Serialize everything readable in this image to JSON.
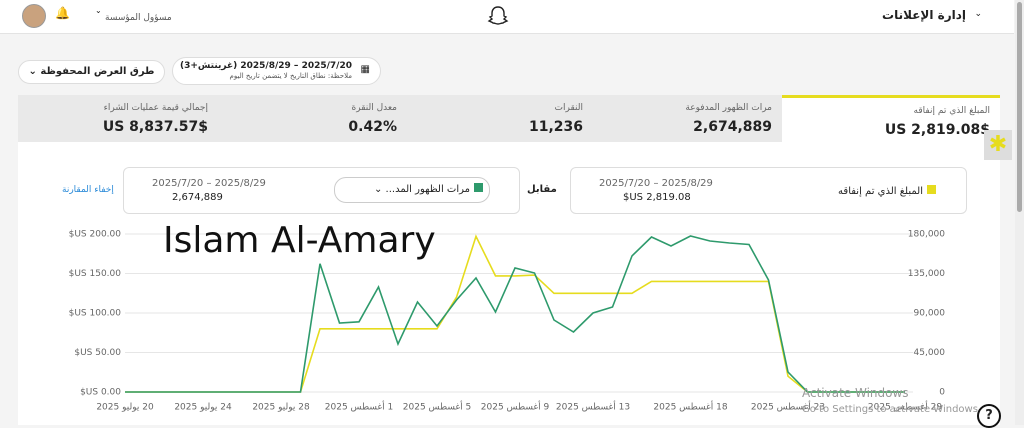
{
  "header": {
    "title": "إدارة الإعلانات",
    "account_role": "مسؤول المؤسسة"
  },
  "toolbar": {
    "saved_views": "طرق العرض المحفوظة",
    "date_range": "2025/7/20 – 2025/8/29 (غرينتش+3)",
    "date_note": "ملاحظة: نطاق التاريخ لا يتضمن تاريخ اليوم"
  },
  "metrics": [
    {
      "label": "المبلغ الذي تم إنفاقه",
      "value": "$US 2,819.08"
    },
    {
      "label": "مرات الظهور المدفوعة",
      "value": "2,674,889"
    },
    {
      "label": "النقرات",
      "value": "11,236"
    },
    {
      "label": "معدل النقرة",
      "value": "0.42%"
    },
    {
      "label": "إجمالي قيمة عمليات الشراء",
      "value": "$US 8,837.57"
    }
  ],
  "comparison": {
    "primary": {
      "date_range": "2025/7/20 – 2025/8/29",
      "value": "$US 2,819.08"
    },
    "versus": "مقابل",
    "secondary": {
      "date_range": "2025/7/20 – 2025/8/29",
      "value": "2,674,889"
    },
    "hide": "إخفاء المقارنة"
  },
  "watermark": "Islam Al-Amary",
  "os_notice": {
    "title": "Activate Windows",
    "text": "Go to Settings to activate Windows."
  },
  "chart_data": {
    "type": "line",
    "categories": [
      "20 يوليو 2025",
      null,
      null,
      null,
      "24 يوليو 2025",
      null,
      null,
      null,
      "28 يوليو 2025",
      null,
      null,
      null,
      "1 أغسطس 2025",
      null,
      null,
      null,
      "5 أغسطس 2025",
      null,
      null,
      null,
      "9 أغسطس 2025",
      null,
      null,
      null,
      "13 أغسطس 2025",
      null,
      null,
      null,
      null,
      "18 أغسطس 2025",
      null,
      null,
      null,
      null,
      "23 أغسطس 2025",
      null,
      null,
      null,
      null,
      null,
      "29 أغسطس 2025"
    ],
    "series": [
      {
        "name": "المبلغ الذي تم إنفاقه",
        "color": "#e6dc1e",
        "axis": "y",
        "values": [
          0,
          0,
          0,
          0,
          0,
          0,
          0,
          0,
          0,
          0,
          80,
          80,
          80,
          80,
          80,
          80,
          80,
          120,
          197,
          147,
          147,
          148,
          125,
          125,
          125,
          125,
          125,
          140,
          140,
          140,
          140,
          140,
          140,
          140,
          20,
          0,
          0,
          0,
          0,
          0,
          0
        ]
      },
      {
        "name": "مرات الظهور المد...",
        "color": "#2e9a6c",
        "axis": "y2",
        "values": [
          0,
          0,
          0,
          0,
          0,
          0,
          0,
          0,
          0,
          0,
          146000,
          78600,
          80000,
          119600,
          54700,
          102500,
          75200,
          104800,
          129900,
          91100,
          141300,
          135600,
          82000,
          68400,
          90000,
          96800,
          155000,
          176600,
          166300,
          177700,
          172000,
          169700,
          168000,
          127600,
          22800,
          0,
          0,
          0,
          0,
          0,
          0
        ]
      }
    ],
    "ylim": [
      0,
      200
    ],
    "yticks": [
      {
        "value": 0,
        "label": "$US 0.00"
      },
      {
        "value": 50,
        "label": "$US 50.00"
      },
      {
        "value": 100,
        "label": "$US 100.00"
      },
      {
        "value": 150,
        "label": "$US 150.00"
      },
      {
        "value": 200,
        "label": "$US 200.00"
      }
    ],
    "y2lim": [
      0,
      180000
    ],
    "y2ticks": [
      0,
      {
        "value": 45000,
        "label": "45,000"
      },
      {
        "value": 90000,
        "label": "90,000"
      },
      {
        "value": 135000,
        "label": "135,000"
      },
      {
        "value": 180000,
        "label": "180,000"
      }
    ],
    "grid": true
  }
}
